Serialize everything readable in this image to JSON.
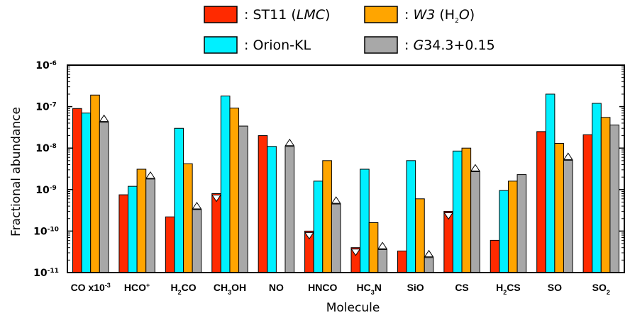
{
  "chart_data": {
    "type": "bar",
    "yscale": "log",
    "xlabel": "Molecule",
    "ylabel": "Fractional abundance",
    "ylim": [
      1e-11,
      1e-06
    ],
    "y_ticks": [
      {
        "mant": "10",
        "exp": "-6"
      },
      {
        "mant": "10",
        "exp": "-7"
      },
      {
        "mant": "10",
        "exp": "-8"
      },
      {
        "mant": "10",
        "exp": "-9"
      },
      {
        "mant": "10",
        "exp": "-10"
      },
      {
        "mant": "10",
        "exp": "-11"
      }
    ],
    "categories": [
      {
        "parts": [
          {
            "t": "CO x10"
          },
          {
            "t": "-3",
            "sup": true
          }
        ]
      },
      {
        "parts": [
          {
            "t": "HCO"
          },
          {
            "t": "+",
            "sup": true
          }
        ]
      },
      {
        "parts": [
          {
            "t": "H"
          },
          {
            "t": "2",
            "sub": true
          },
          {
            "t": "CO"
          }
        ]
      },
      {
        "parts": [
          {
            "t": "CH"
          },
          {
            "t": "3",
            "sub": true
          },
          {
            "t": "OH"
          }
        ]
      },
      {
        "parts": [
          {
            "t": "NO"
          }
        ]
      },
      {
        "parts": [
          {
            "t": "HNCO"
          }
        ]
      },
      {
        "parts": [
          {
            "t": "HC"
          },
          {
            "t": "3",
            "sub": true
          },
          {
            "t": "N"
          }
        ]
      },
      {
        "parts": [
          {
            "t": "SiO"
          }
        ]
      },
      {
        "parts": [
          {
            "t": "CS"
          }
        ]
      },
      {
        "parts": [
          {
            "t": "H"
          },
          {
            "t": "2",
            "sub": true
          },
          {
            "t": "CS"
          }
        ]
      },
      {
        "parts": [
          {
            "t": "SO"
          }
        ]
      },
      {
        "parts": [
          {
            "t": "SO"
          },
          {
            "t": "2",
            "sub": true
          }
        ]
      }
    ],
    "series": [
      {
        "name": "ST11 (LMC)",
        "color": "#ff2a00",
        "values": [
          9e-08,
          7.5e-10,
          2.2e-10,
          8e-10,
          2e-08,
          1e-10,
          4e-11,
          3.3e-11,
          3e-10,
          6e-11,
          2.5e-08,
          2.1e-08
        ],
        "limit_down": [
          false,
          false,
          false,
          true,
          false,
          true,
          true,
          false,
          true,
          false,
          false,
          false
        ]
      },
      {
        "name": "Orion-KL",
        "color": "#00f0ff",
        "values": [
          7e-08,
          1.2e-09,
          3e-08,
          1.8e-07,
          1.1e-08,
          1.6e-09,
          3.1e-09,
          5e-09,
          8.5e-09,
          9.5e-10,
          2e-07,
          1.2e-07
        ],
        "limit_down": [
          false,
          false,
          false,
          false,
          false,
          false,
          false,
          false,
          false,
          false,
          false,
          false
        ]
      },
      {
        "name": "W3 (H2O)",
        "color": "#ffa500",
        "values": [
          1.9e-07,
          3.1e-09,
          4.2e-09,
          9.2e-08,
          null,
          5e-09,
          1.6e-10,
          6e-10,
          1e-08,
          1.6e-09,
          1.3e-08,
          5.5e-08
        ],
        "limit_down": [
          false,
          false,
          false,
          false,
          false,
          false,
          false,
          false,
          false,
          false,
          false,
          false
        ]
      },
      {
        "name": "G34.3+0.15",
        "color": "#a8a8a8",
        "values": [
          4.2e-08,
          1.8e-09,
          3.3e-10,
          3.4e-08,
          1.1e-08,
          4.5e-10,
          3.6e-11,
          2.3e-11,
          2.7e-09,
          2.3e-09,
          5.1e-09,
          3.6e-08
        ],
        "limit_up": [
          true,
          true,
          true,
          false,
          true,
          true,
          true,
          true,
          true,
          false,
          true,
          false
        ]
      }
    ],
    "legend": {
      "placement": "top",
      "entries": [
        {
          "series": 0,
          "parts": [
            {
              "t": ": ST11 ("
            },
            {
              "t": "LMC",
              "i": true
            },
            {
              "t": ")"
            }
          ]
        },
        {
          "series": 2,
          "parts": [
            {
              "t": ": "
            },
            {
              "t": "W3",
              "i": true
            },
            {
              "t": " (H"
            },
            {
              "t": "2",
              "sub": true
            },
            {
              "t": "O",
              "i": true
            },
            {
              "t": ")"
            }
          ]
        },
        {
          "series": 1,
          "parts": [
            {
              "t": ": Orion-KL"
            }
          ]
        },
        {
          "series": 3,
          "parts": [
            {
              "t": ": "
            },
            {
              "t": "G",
              "i": true
            },
            {
              "t": "34.3+0.15"
            }
          ]
        }
      ]
    }
  }
}
